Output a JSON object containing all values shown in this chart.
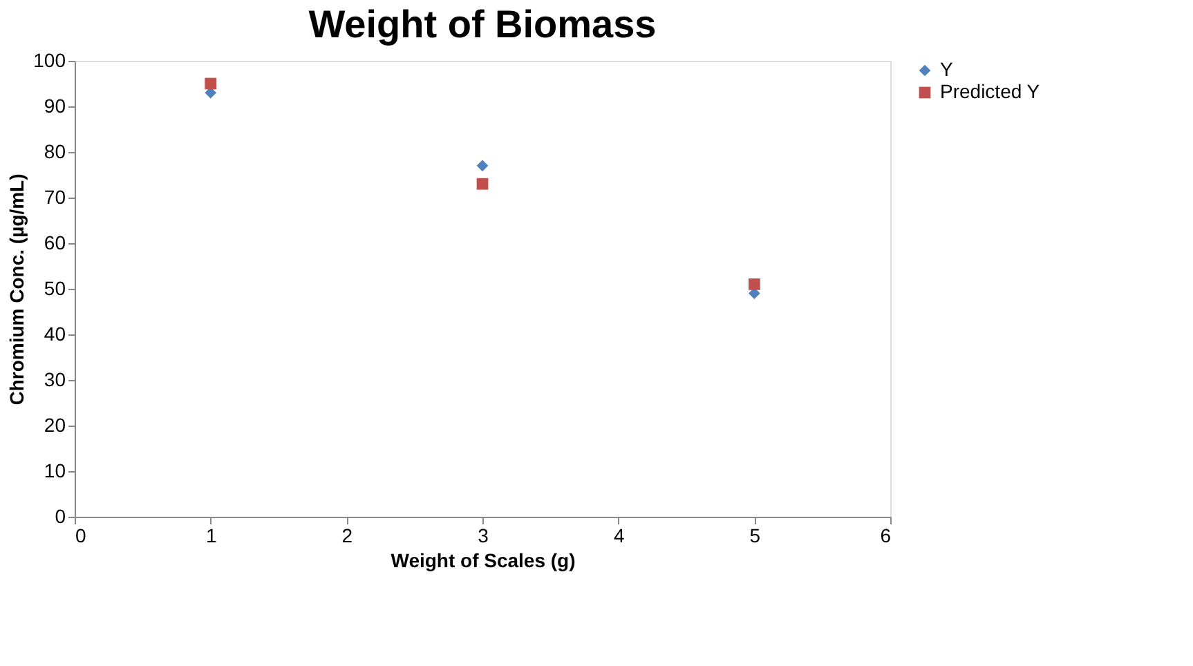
{
  "chart_data": {
    "type": "scatter",
    "title": "Weight of Biomass",
    "xlabel": "Weight of Scales (g)",
    "ylabel": "Chromium Conc. (µg/mL)",
    "x": [
      1,
      3,
      5
    ],
    "series": [
      {
        "name": "Y",
        "color": "#4f81bd",
        "marker": "diamond",
        "values": [
          93,
          77,
          49
        ]
      },
      {
        "name": "Predicted Y",
        "color": "#c0504d",
        "marker": "square",
        "values": [
          95,
          73,
          51
        ]
      }
    ],
    "xlim": [
      0,
      6
    ],
    "xticks": [
      0,
      1,
      2,
      3,
      4,
      5,
      6
    ],
    "ylim": [
      0,
      100
    ],
    "yticks": [
      0,
      10,
      20,
      30,
      40,
      50,
      60,
      70,
      80,
      90,
      100
    ],
    "grid": false,
    "legend": "right"
  }
}
